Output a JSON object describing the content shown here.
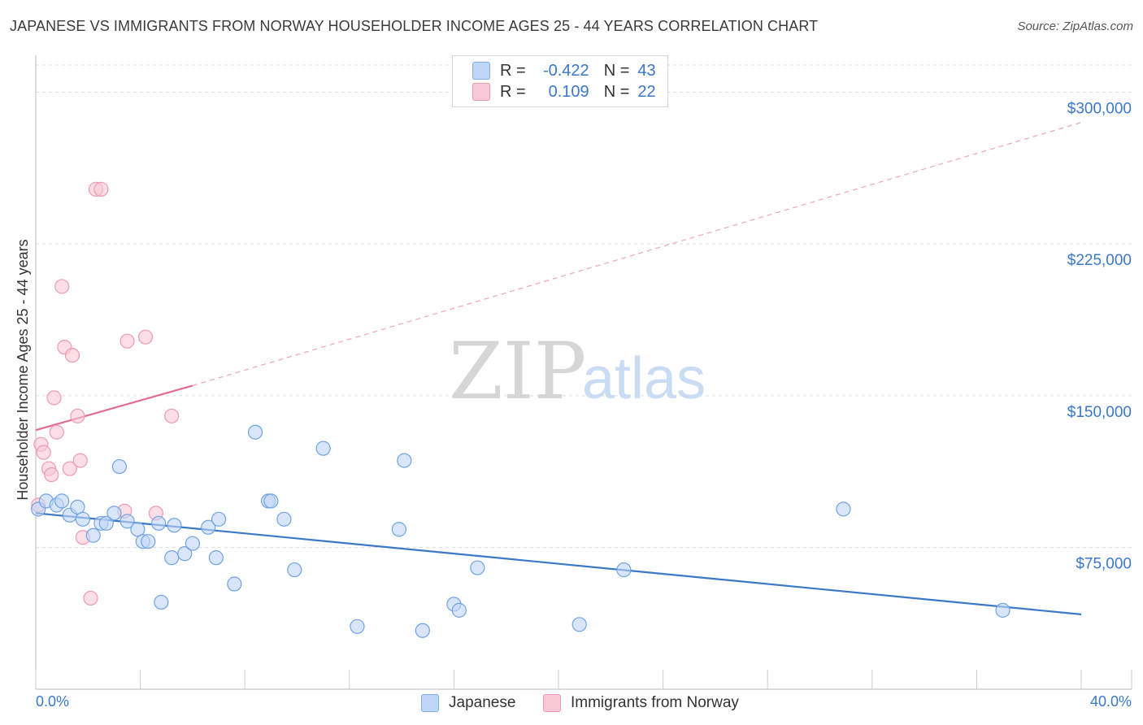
{
  "header": {
    "title": "JAPANESE VS IMMIGRANTS FROM NORWAY HOUSEHOLDER INCOME AGES 25 - 44 YEARS CORRELATION CHART",
    "source": "Source: ZipAtlas.com"
  },
  "legend": {
    "rows": [
      {
        "r_label": "R =",
        "r_value": "-0.422",
        "n_label": "N =",
        "n_value": "43"
      },
      {
        "r_label": "R =",
        "r_value": "0.109",
        "n_label": "N =",
        "n_value": "22"
      }
    ]
  },
  "bottom_legend": {
    "japanese": "Japanese",
    "norway": "Immigrants from Norway"
  },
  "watermark": {
    "zip": "ZIP",
    "atlas": "atlas"
  },
  "colors": {
    "blue": "#3a78c9",
    "blue_fill": "#bfd6f5",
    "pink": "#e46b93",
    "pink_fill": "#f9c8d6"
  },
  "chart_data": {
    "type": "scatter",
    "title": "JAPANESE VS IMMIGRANTS FROM NORWAY HOUSEHOLDER INCOME AGES 25 - 44 YEARS CORRELATION CHART",
    "xlabel": "",
    "ylabel": "Householder Income Ages 25 - 44 years",
    "xlim": [
      0,
      40
    ],
    "ylim": [
      5000,
      315000
    ],
    "x_tick_labels": [
      "0.0%",
      "40.0%"
    ],
    "y_ticks": [
      75000,
      150000,
      225000,
      300000
    ],
    "y_tick_labels": [
      "$75,000",
      "$150,000",
      "$225,000",
      "$300,000"
    ],
    "series": [
      {
        "name": "Japanese",
        "r": -0.422,
        "n": 43,
        "trend": {
          "x0": 0,
          "y0": 92000,
          "x1": 40,
          "y1": 42000,
          "style": "solid"
        },
        "points": [
          [
            0.1,
            94000
          ],
          [
            0.4,
            98000
          ],
          [
            0.8,
            96000
          ],
          [
            1.0,
            98000
          ],
          [
            1.3,
            91000
          ],
          [
            1.6,
            95000
          ],
          [
            1.8,
            89000
          ],
          [
            2.2,
            81000
          ],
          [
            2.5,
            87000
          ],
          [
            2.7,
            87000
          ],
          [
            3.0,
            92000
          ],
          [
            3.2,
            115000
          ],
          [
            3.5,
            88000
          ],
          [
            3.9,
            84000
          ],
          [
            4.1,
            78000
          ],
          [
            4.3,
            78000
          ],
          [
            4.7,
            87000
          ],
          [
            4.8,
            48000
          ],
          [
            5.2,
            70000
          ],
          [
            5.3,
            86000
          ],
          [
            5.7,
            72000
          ],
          [
            6.0,
            77000
          ],
          [
            6.6,
            85000
          ],
          [
            6.9,
            70000
          ],
          [
            7.0,
            89000
          ],
          [
            7.6,
            57000
          ],
          [
            8.4,
            132000
          ],
          [
            8.9,
            98000
          ],
          [
            9.0,
            98000
          ],
          [
            9.5,
            89000
          ],
          [
            9.9,
            64000
          ],
          [
            11.0,
            124000
          ],
          [
            12.3,
            36000
          ],
          [
            13.9,
            84000
          ],
          [
            14.1,
            118000
          ],
          [
            14.8,
            34000
          ],
          [
            16.0,
            47000
          ],
          [
            16.2,
            44000
          ],
          [
            16.9,
            65000
          ],
          [
            20.8,
            37000
          ],
          [
            22.5,
            64000
          ],
          [
            30.9,
            94000
          ],
          [
            37.0,
            44000
          ]
        ]
      },
      {
        "name": "Immigrants from Norway",
        "r": 0.109,
        "n": 22,
        "trend": {
          "x0": 0,
          "y0": 133000,
          "x1": 6,
          "y1": 155000,
          "style": "solid",
          "ext_x1": 40,
          "ext_y1": 285000,
          "ext_style": "dashed"
        },
        "points": [
          [
            0.1,
            96000
          ],
          [
            0.2,
            126000
          ],
          [
            0.3,
            122000
          ],
          [
            0.5,
            114000
          ],
          [
            0.6,
            111000
          ],
          [
            0.7,
            149000
          ],
          [
            0.8,
            132000
          ],
          [
            1.0,
            204000
          ],
          [
            1.1,
            174000
          ],
          [
            1.3,
            114000
          ],
          [
            1.4,
            170000
          ],
          [
            1.6,
            140000
          ],
          [
            1.7,
            118000
          ],
          [
            1.8,
            80000
          ],
          [
            2.1,
            50000
          ],
          [
            2.3,
            252000
          ],
          [
            2.5,
            252000
          ],
          [
            3.4,
            93000
          ],
          [
            3.5,
            177000
          ],
          [
            4.2,
            179000
          ],
          [
            4.6,
            92000
          ],
          [
            5.2,
            140000
          ]
        ]
      }
    ]
  }
}
